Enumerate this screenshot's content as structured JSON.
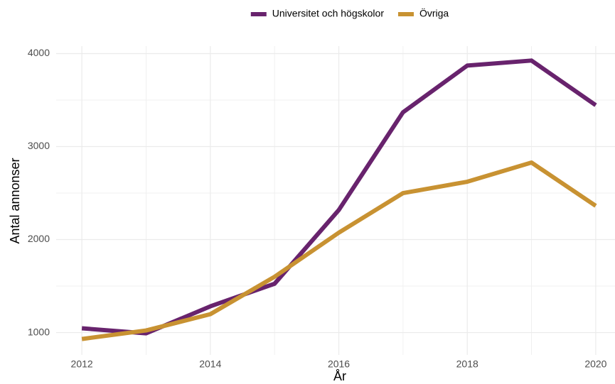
{
  "chart_data": {
    "type": "line",
    "x_label": "År",
    "y_label": "Antal annonser",
    "x": [
      2012,
      2013,
      2014,
      2015,
      2016,
      2017,
      2018,
      2019,
      2020
    ],
    "series": [
      {
        "name": "Universitet och högskolor",
        "color": "#68236d",
        "values": [
          1046,
          992,
          1282,
          1525,
          2318,
          3369,
          3871,
          3925,
          3445
        ]
      },
      {
        "name": "Övriga",
        "color": "#c89232",
        "values": [
          931,
          1023,
          1198,
          1600,
          2074,
          2500,
          2622,
          2828,
          2363
        ]
      }
    ],
    "xlim": [
      2011.6,
      2020.3
    ],
    "xticks": [
      2012,
      2014,
      2016,
      2018,
      2020
    ],
    "ylim": [
      760,
      4080
    ],
    "yticks": [
      1000,
      2000,
      3000,
      4000
    ],
    "grid": true,
    "legend": "top"
  }
}
